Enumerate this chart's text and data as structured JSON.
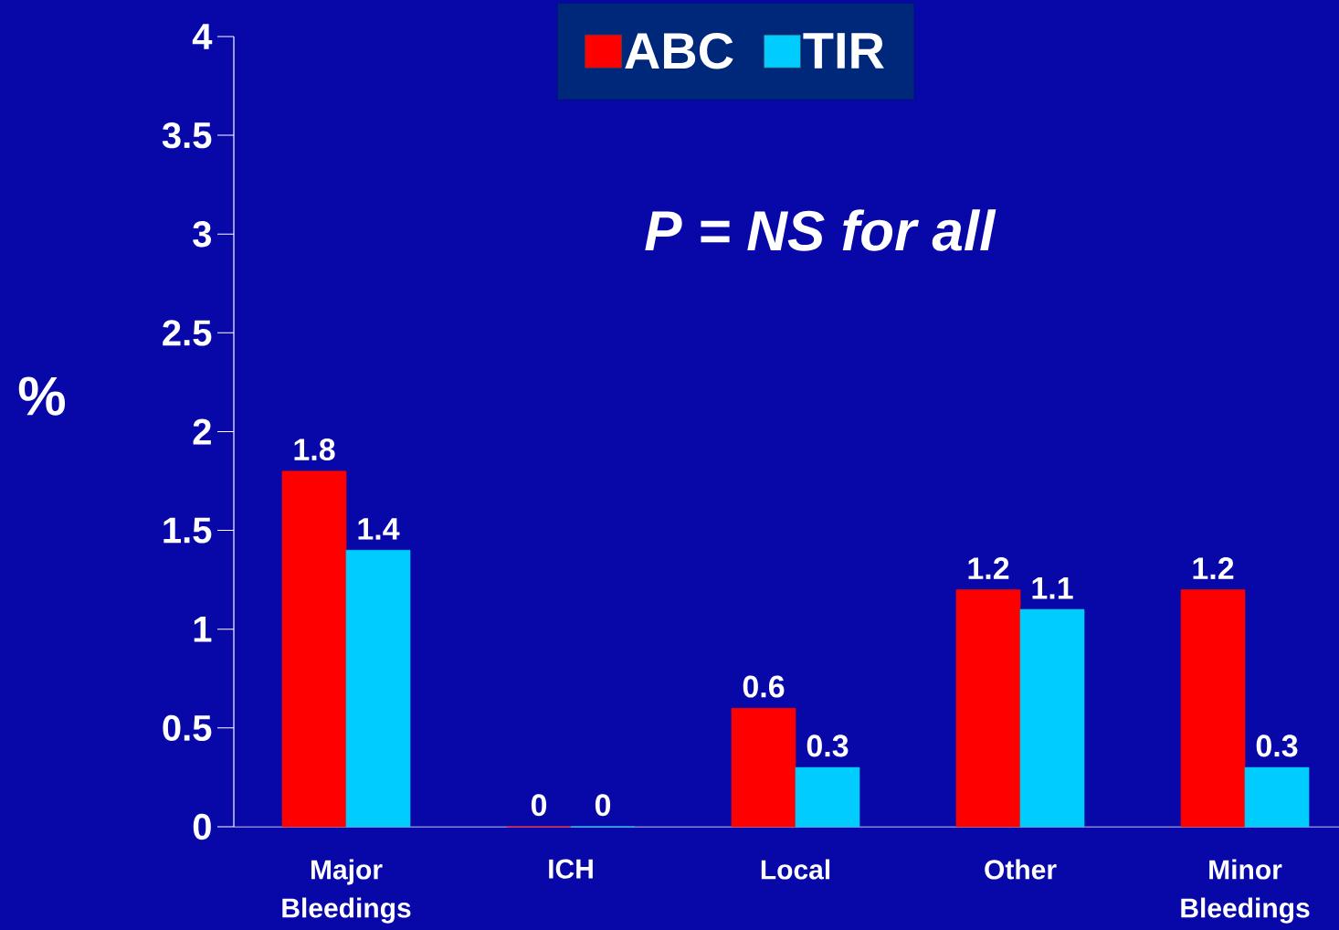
{
  "chart_data": {
    "type": "bar",
    "ylabel": "%",
    "categories": [
      "Major Bleedings",
      "ICH",
      "Local",
      "Other",
      "Minor Bleedings"
    ],
    "series": [
      {
        "name": "ABC",
        "color": "#ff0000",
        "values": [
          1.8,
          0,
          0.6,
          1.2,
          1.2
        ]
      },
      {
        "name": "TIR",
        "color": "#00ccff",
        "values": [
          1.4,
          0,
          0.3,
          1.1,
          0.3
        ]
      }
    ],
    "ylim": [
      0,
      4
    ],
    "yticks": [
      0,
      0.5,
      1,
      1.5,
      2,
      2.5,
      3,
      3.5,
      4
    ],
    "data_labels": true,
    "legend": "top",
    "grid": false,
    "annotations": [
      "P = NS for all"
    ]
  }
}
